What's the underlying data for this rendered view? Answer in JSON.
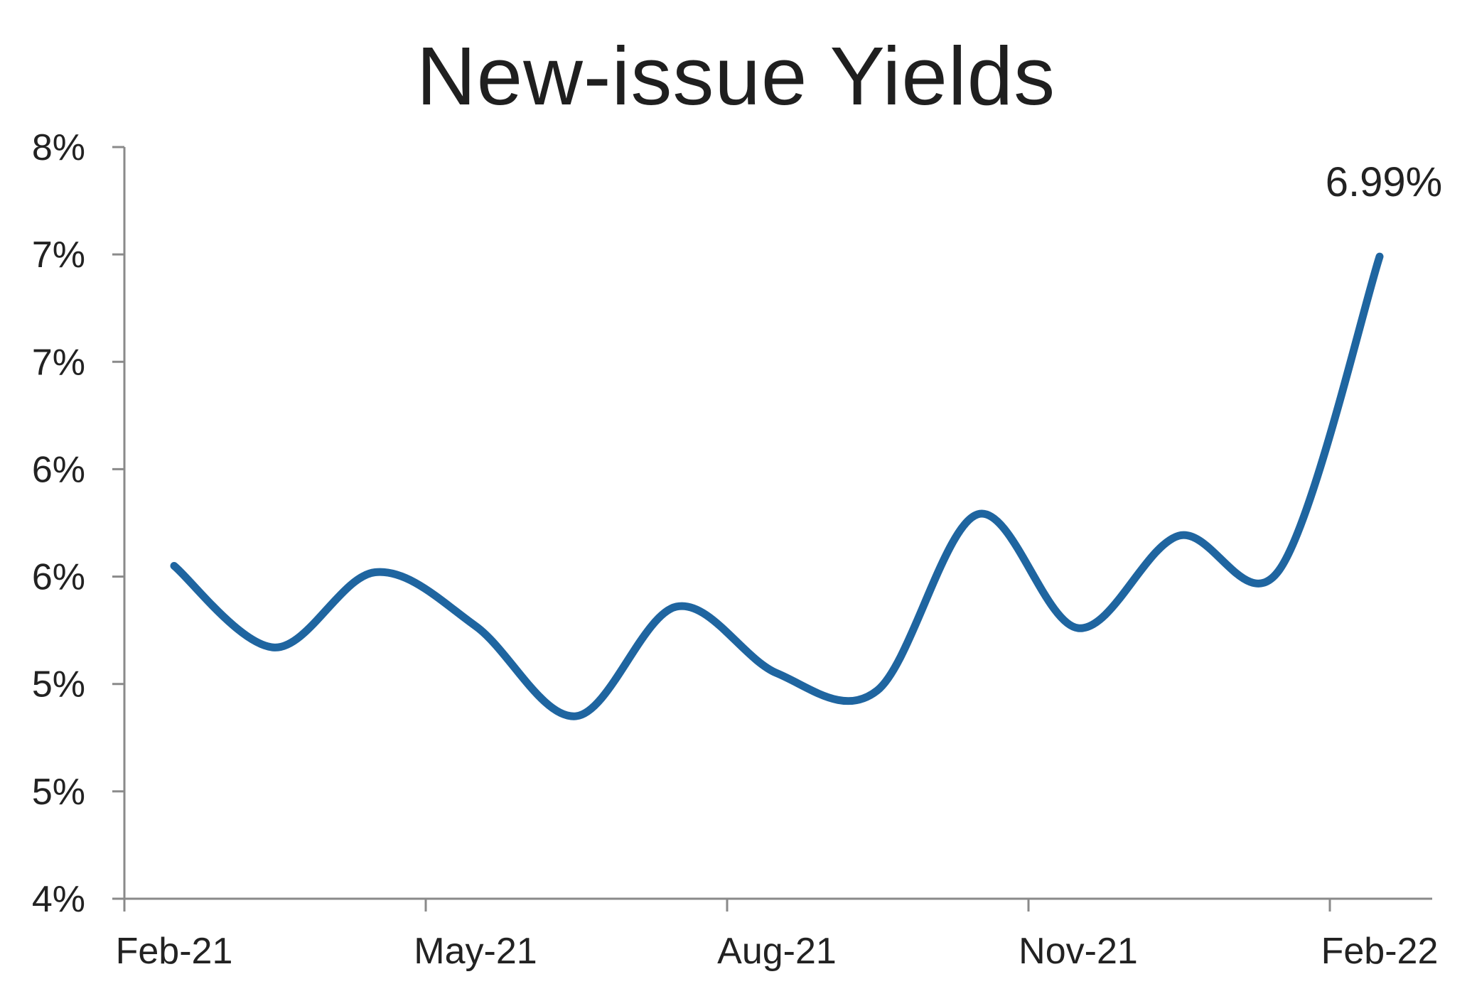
{
  "chart_data": {
    "type": "line",
    "title": "New-issue Yields",
    "xlabel": "",
    "ylabel": "",
    "x_tick_labels": [
      "Feb-21",
      "May-21",
      "Aug-21",
      "Nov-21",
      "Feb-22"
    ],
    "y_tick_labels": [
      "4%",
      "5%",
      "5%",
      "6%",
      "6%",
      "7%",
      "7%",
      "8%"
    ],
    "ylim": [
      4.0,
      7.5
    ],
    "grid": false,
    "legend": "none",
    "series": [
      {
        "color": "#1f65a0",
        "x": [
          "Feb-21",
          "Mar-21",
          "Apr-21",
          "May-21",
          "Jun-21",
          "Jul-21",
          "Aug-21",
          "Sep-21",
          "Oct-21",
          "Nov-21",
          "Dec-21",
          "Jan-22",
          "Feb-22"
        ],
        "values": [
          5.55,
          5.17,
          5.52,
          5.27,
          4.85,
          5.36,
          5.05,
          4.97,
          5.79,
          5.26,
          5.69,
          5.53,
          6.99
        ]
      }
    ],
    "annotations": [
      {
        "text": "6.99%",
        "x": "Feb-22",
        "y": 6.99
      }
    ]
  }
}
